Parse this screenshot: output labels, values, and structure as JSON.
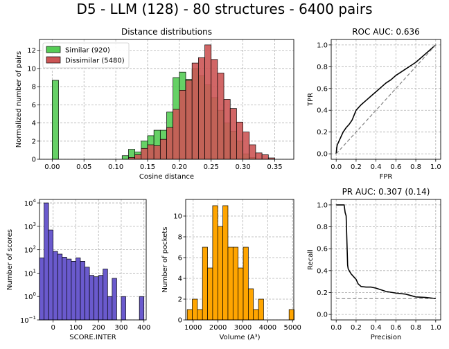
{
  "suptitle": "D5 - LLM (128) - 80 structures - 6400 pairs",
  "chart_data": [
    {
      "type": "histogram",
      "title": "Distance distributions",
      "xlabel": "Cosine distance",
      "ylabel": "Normalized number of pairs",
      "xlim": [
        -0.02,
        0.38
      ],
      "ylim": [
        0,
        13.2
      ],
      "xticks": [
        0,
        0.05,
        0.1,
        0.15,
        0.2,
        0.25,
        0.3,
        0.35
      ],
      "xtick_labels": [
        "0.00",
        "0.05",
        "0.10",
        "0.15",
        "0.20",
        "0.25",
        "0.30",
        "0.35"
      ],
      "yticks": [
        0,
        2,
        4,
        6,
        8,
        10,
        12
      ],
      "ytick_labels": [
        "0",
        "2",
        "4",
        "6",
        "8",
        "10",
        "12"
      ],
      "grid": true,
      "legend_position": "top-left",
      "bin_width": 0.01,
      "series": [
        {
          "name": "Similar (920)",
          "color": "#55cc55",
          "bin_starts": [
            0.0,
            0.11,
            0.12,
            0.13,
            0.14,
            0.15,
            0.16,
            0.17,
            0.18,
            0.19,
            0.2,
            0.21,
            0.22,
            0.23,
            0.24,
            0.25,
            0.26,
            0.27,
            0.28,
            0.29,
            0.3,
            0.31
          ],
          "values": [
            8.7,
            0.4,
            1.1,
            0.8,
            2.0,
            2.6,
            3.2,
            3.2,
            5.2,
            9.0,
            9.6,
            8.8,
            10.0,
            9.2,
            8.2,
            6.8,
            5.4,
            4.0,
            3.1,
            2.0,
            0.6,
            0.2
          ]
        },
        {
          "name": "Dissimilar (5480)",
          "color": "#cc5555",
          "bin_starts": [
            0.12,
            0.13,
            0.14,
            0.15,
            0.16,
            0.17,
            0.18,
            0.19,
            0.2,
            0.21,
            0.22,
            0.23,
            0.24,
            0.25,
            0.26,
            0.27,
            0.28,
            0.29,
            0.3,
            0.31,
            0.32,
            0.33,
            0.34
          ],
          "values": [
            0.2,
            0.5,
            1.2,
            1.6,
            1.5,
            2.2,
            3.5,
            5.5,
            7.6,
            8.7,
            10.6,
            11.2,
            12.6,
            11.0,
            9.5,
            6.6,
            5.6,
            4.1,
            3.0,
            1.6,
            0.7,
            0.5,
            0.15
          ]
        }
      ]
    },
    {
      "type": "line",
      "title": "ROC AUC: 0.636",
      "xlabel": "FPR",
      "ylabel": "TPR",
      "xlim": [
        -0.05,
        1.05
      ],
      "ylim": [
        -0.05,
        1.05
      ],
      "xticks": [
        0,
        0.2,
        0.4,
        0.6,
        0.8,
        1.0
      ],
      "xtick_labels": [
        "0.0",
        "0.2",
        "0.4",
        "0.6",
        "0.8",
        "1.0"
      ],
      "yticks": [
        0,
        0.2,
        0.4,
        0.6,
        0.8,
        1.0
      ],
      "ytick_labels": [
        "0.0",
        "0.2",
        "0.4",
        "0.6",
        "0.8",
        "1.0"
      ],
      "grid": true,
      "series": [
        {
          "name": "",
          "color": "#000000",
          "x": [
            0,
            0.005,
            0.01,
            0.02,
            0.03,
            0.05,
            0.07,
            0.1,
            0.13,
            0.16,
            0.2,
            0.25,
            0.3,
            0.35,
            0.4,
            0.45,
            0.5,
            0.55,
            0.6,
            0.65,
            0.7,
            0.75,
            0.8,
            0.85,
            0.9,
            0.95,
            1.0
          ],
          "y": [
            0,
            0.05,
            0.08,
            0.1,
            0.12,
            0.16,
            0.2,
            0.24,
            0.27,
            0.31,
            0.4,
            0.45,
            0.49,
            0.53,
            0.57,
            0.61,
            0.65,
            0.68,
            0.72,
            0.75,
            0.78,
            0.81,
            0.84,
            0.88,
            0.92,
            0.96,
            1.0
          ]
        },
        {
          "name": "",
          "color": "#808080",
          "dashed": true,
          "x": [
            0,
            1
          ],
          "y": [
            0,
            1
          ]
        }
      ]
    },
    {
      "type": "histogram",
      "title": "",
      "xlabel": "SCORE.INTER",
      "ylabel": "Number of scores",
      "log_y": true,
      "xlim": [
        -60,
        410
      ],
      "ylim_exponents": [
        -1,
        4.15
      ],
      "xticks": [
        0,
        100,
        200,
        300,
        400
      ],
      "xtick_labels": [
        "0",
        "100",
        "200",
        "300",
        "400"
      ],
      "yticks_exponents": [
        -1,
        0,
        1,
        2,
        3,
        4
      ],
      "grid": true,
      "bin_width": 20,
      "series": [
        {
          "name": "",
          "color": "#6a5acd",
          "bin_starts": [
            -60,
            -40,
            -20,
            0,
            20,
            40,
            60,
            80,
            100,
            120,
            140,
            160,
            180,
            200,
            220,
            240,
            260,
            280,
            300,
            320,
            340,
            360,
            380
          ],
          "values": [
            45,
            10000,
            700,
            85,
            65,
            48,
            40,
            32,
            45,
            32,
            18,
            8,
            7,
            8,
            15,
            1,
            6,
            0,
            1,
            0,
            0,
            0,
            1
          ]
        }
      ]
    },
    {
      "type": "histogram",
      "title": "",
      "xlabel": "Volume (A³)",
      "ylabel": "Number of pockets",
      "xlim": [
        700,
        5050
      ],
      "ylim": [
        0,
        11.6
      ],
      "xticks": [
        1000,
        2000,
        3000,
        4000,
        5000
      ],
      "xtick_labels": [
        "1000",
        "2000",
        "3000",
        "4000",
        "5000"
      ],
      "yticks": [
        0,
        2,
        4,
        6,
        8,
        10
      ],
      "ytick_labels": [
        "0",
        "2",
        "4",
        "6",
        "8",
        "10"
      ],
      "grid": true,
      "bin_width": 205,
      "series": [
        {
          "name": "",
          "color": "#ffa500",
          "bin_starts": [
            760,
            965,
            1170,
            1375,
            1580,
            1785,
            1990,
            2195,
            2400,
            2605,
            2810,
            3015,
            3220,
            3425,
            3630,
            3835,
            4040,
            4245,
            4450,
            4655,
            4860
          ],
          "values": [
            1,
            2,
            1,
            7,
            5,
            11,
            9,
            11,
            7,
            7,
            5,
            7,
            3,
            1,
            2,
            0,
            0,
            0,
            0,
            0,
            1
          ]
        }
      ]
    },
    {
      "type": "line",
      "title": "PR AUC: 0.307 (0.14)",
      "xlabel": "Precision",
      "ylabel": "Recall",
      "xlim": [
        -0.05,
        1.05
      ],
      "ylim": [
        -0.05,
        1.05
      ],
      "xticks": [
        0,
        0.2,
        0.4,
        0.6,
        0.8,
        1.0
      ],
      "xtick_labels": [
        "0.0",
        "0.2",
        "0.4",
        "0.6",
        "0.8",
        "1.0"
      ],
      "yticks": [
        0,
        0.2,
        0.4,
        0.6,
        0.8,
        1.0
      ],
      "ytick_labels": [
        "0.0",
        "0.2",
        "0.4",
        "0.6",
        "0.8",
        "1.0"
      ],
      "grid": true,
      "series": [
        {
          "name": "",
          "color": "#000000",
          "x": [
            0,
            0.08,
            0.09,
            0.1,
            0.11,
            0.115,
            0.12,
            0.13,
            0.15,
            0.18,
            0.2,
            0.22,
            0.25,
            0.3,
            0.35,
            0.4,
            0.5,
            0.6,
            0.7,
            0.8,
            0.9,
            1.0
          ],
          "y": [
            1.0,
            1.0,
            0.93,
            0.9,
            0.6,
            0.45,
            0.42,
            0.4,
            0.37,
            0.34,
            0.32,
            0.28,
            0.255,
            0.25,
            0.25,
            0.24,
            0.21,
            0.195,
            0.185,
            0.16,
            0.155,
            0.145
          ]
        },
        {
          "name": "",
          "color": "#808080",
          "dashed": true,
          "x": [
            0,
            1
          ],
          "y": [
            0.144,
            0.144
          ]
        }
      ]
    }
  ]
}
